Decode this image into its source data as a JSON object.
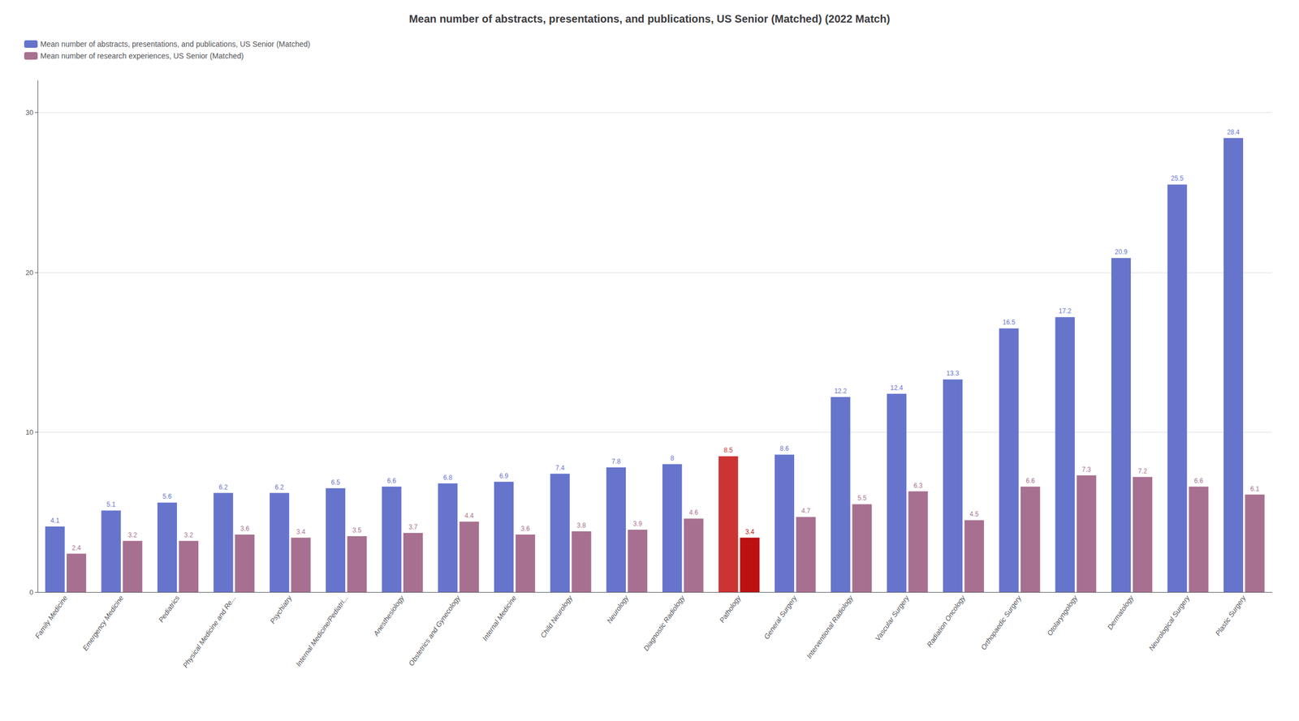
{
  "chart_data": {
    "type": "bar",
    "title": "Mean number of abstracts, presentations, and publications, US Senior (Matched) (2022 Match)",
    "categories": [
      "Family Medicine",
      "Emergency Medicine",
      "Pediatrics",
      "Physical Medicine and Re...",
      "Psychiatry",
      "Internal Medicine/Pediatri...",
      "Anesthesiology",
      "Obstetrics and Gynecology",
      "Internal Medicine",
      "Child Neurology",
      "Neurology",
      "Diagnostic Radiology",
      "Pathology",
      "General Surgery",
      "Interventional Radiology",
      "Vascular Surgery",
      "Radiation Oncology",
      "Orthopaedic Surgery",
      "Otolaryngology",
      "Dermatology",
      "Neurological Surgery",
      "Plastic Surgery"
    ],
    "series": [
      {
        "name": "Mean number of abstracts, presentations, and publications, US Senior (Matched)",
        "color": "#6674CC",
        "colors": [
          "#6674CC",
          "#6674CC",
          "#6674CC",
          "#6674CC",
          "#6674CC",
          "#6674CC",
          "#6674CC",
          "#6674CC",
          "#6674CC",
          "#6674CC",
          "#6674CC",
          "#6674CC",
          "#CC3333",
          "#6674CC",
          "#6674CC",
          "#6674CC",
          "#6674CC",
          "#6674CC",
          "#6674CC",
          "#6674CC",
          "#6674CC",
          "#6674CC"
        ],
        "values": [
          4.1,
          5.1,
          5.6,
          6.2,
          6.2,
          6.5,
          6.6,
          6.8,
          6.9,
          7.4,
          7.8,
          8.0,
          8.5,
          8.6,
          12.2,
          12.4,
          13.3,
          16.5,
          17.2,
          20.9,
          25.5,
          28.4
        ]
      },
      {
        "name": "Mean number of research experiences, US Senior (Matched)",
        "color": "#A87090",
        "colors": [
          "#A87090",
          "#A87090",
          "#A87090",
          "#A87090",
          "#A87090",
          "#A87090",
          "#A87090",
          "#A87090",
          "#A87090",
          "#A87090",
          "#A87090",
          "#A87090",
          "#BB1111",
          "#A87090",
          "#A87090",
          "#A87090",
          "#A87090",
          "#A87090",
          "#A87090",
          "#A87090",
          "#A87090",
          "#A87090"
        ],
        "values": [
          2.4,
          3.2,
          3.2,
          3.6,
          3.4,
          3.5,
          3.7,
          4.4,
          3.6,
          3.8,
          3.9,
          4.6,
          3.4,
          4.7,
          5.5,
          6.3,
          4.5,
          6.6,
          7.3,
          7.2,
          6.6,
          6.1
        ]
      }
    ],
    "ylim": [
      0,
      32
    ],
    "yticks": [
      0,
      10,
      20,
      30
    ],
    "grid": true,
    "legend": "upper left",
    "data_labels": true
  }
}
